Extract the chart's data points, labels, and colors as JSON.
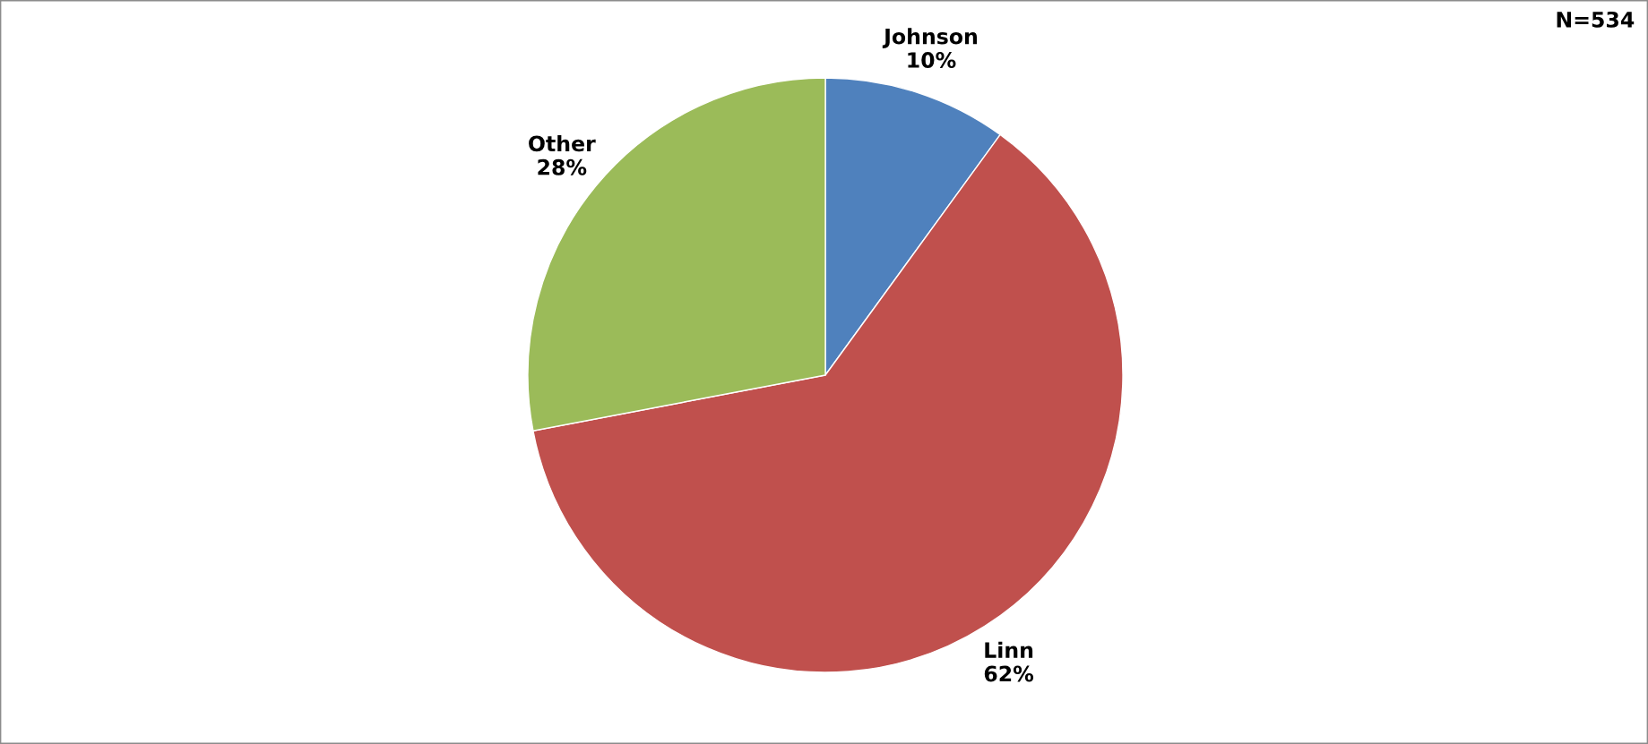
{
  "chart_data": {
    "type": "pie",
    "categories": [
      "Johnson",
      "Linn",
      "Other"
    ],
    "values": [
      10,
      62,
      28
    ],
    "value_labels": [
      "10%",
      "62%",
      "28%"
    ],
    "colors": [
      "#4f81bd",
      "#c0504d",
      "#9bbb59"
    ],
    "annotations": [
      "N=534"
    ]
  }
}
